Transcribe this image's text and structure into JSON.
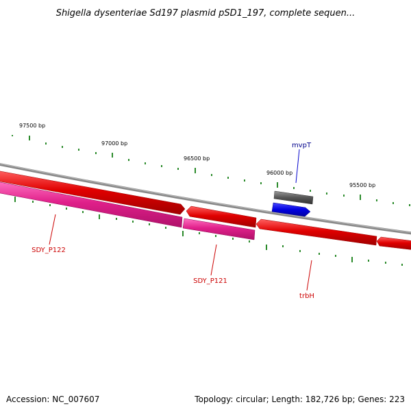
{
  "title": "Shigella dysenteriae Sd197 plasmid pSD1_197, complete sequen...",
  "accession": "Accession: NC_007607",
  "summary": "Topology: circular; Length: 182,726 bp; Genes: 223",
  "colors": {
    "forward_gene": "#e00000",
    "reverse_gene": "#e0208a",
    "mvpT_gene": "#555555",
    "blue_feature": "#0000e0",
    "backbone": "#888888",
    "tick": "#2a8a2a",
    "label_red": "#cc0000",
    "label_blue": "#00008b"
  },
  "ticks": [
    {
      "label": "97500 bp"
    },
    {
      "label": "97000 bp"
    },
    {
      "label": "96500 bp"
    },
    {
      "label": "96000 bp"
    },
    {
      "label": "95500 bp"
    }
  ],
  "genes": [
    {
      "name": "SDY_P122"
    },
    {
      "name": "SDY_P121"
    },
    {
      "name": "trbH"
    },
    {
      "name": "mvpT"
    }
  ]
}
